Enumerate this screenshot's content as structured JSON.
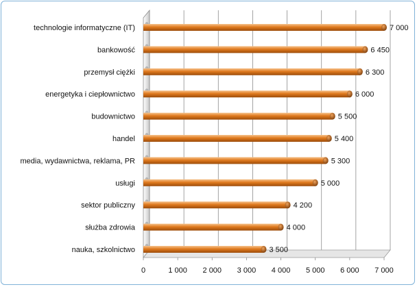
{
  "chart_data": {
    "type": "bar",
    "orientation": "horizontal",
    "categories": [
      "technologie informatyczne  (IT)",
      "bankowość",
      "przemysł ciężki",
      "energetyka i ciepłownictwo",
      "budownictwo",
      "handel",
      "media, wydawnictwa,  reklama, PR",
      "usługi",
      "sektor publiczny",
      "służba zdrowia",
      "nauka, szkolnictwo"
    ],
    "values": [
      7000,
      6450,
      6300,
      6000,
      5500,
      5400,
      5300,
      5000,
      4200,
      4000,
      3500
    ],
    "value_labels": [
      "7 000",
      "6 450",
      "6 300",
      "6 000",
      "5 500",
      "5 400",
      "5 300",
      "5 000",
      "4 200",
      "4 000",
      "3 500"
    ],
    "xlim": [
      0,
      7000
    ],
    "x_ticks": [
      0,
      1000,
      2000,
      3000,
      4000,
      5000,
      6000,
      7000
    ],
    "x_tick_labels": [
      "0",
      "1 000",
      "2 000",
      "3 000",
      "4 000",
      "5 000",
      "6 000",
      "7 000"
    ],
    "grid": true,
    "bar_color": "#e07a1e",
    "bar_highlight_color": "#f6c28c",
    "bar_shadow_color": "#9c4c0a",
    "frame_color": "#7fb2d8"
  }
}
